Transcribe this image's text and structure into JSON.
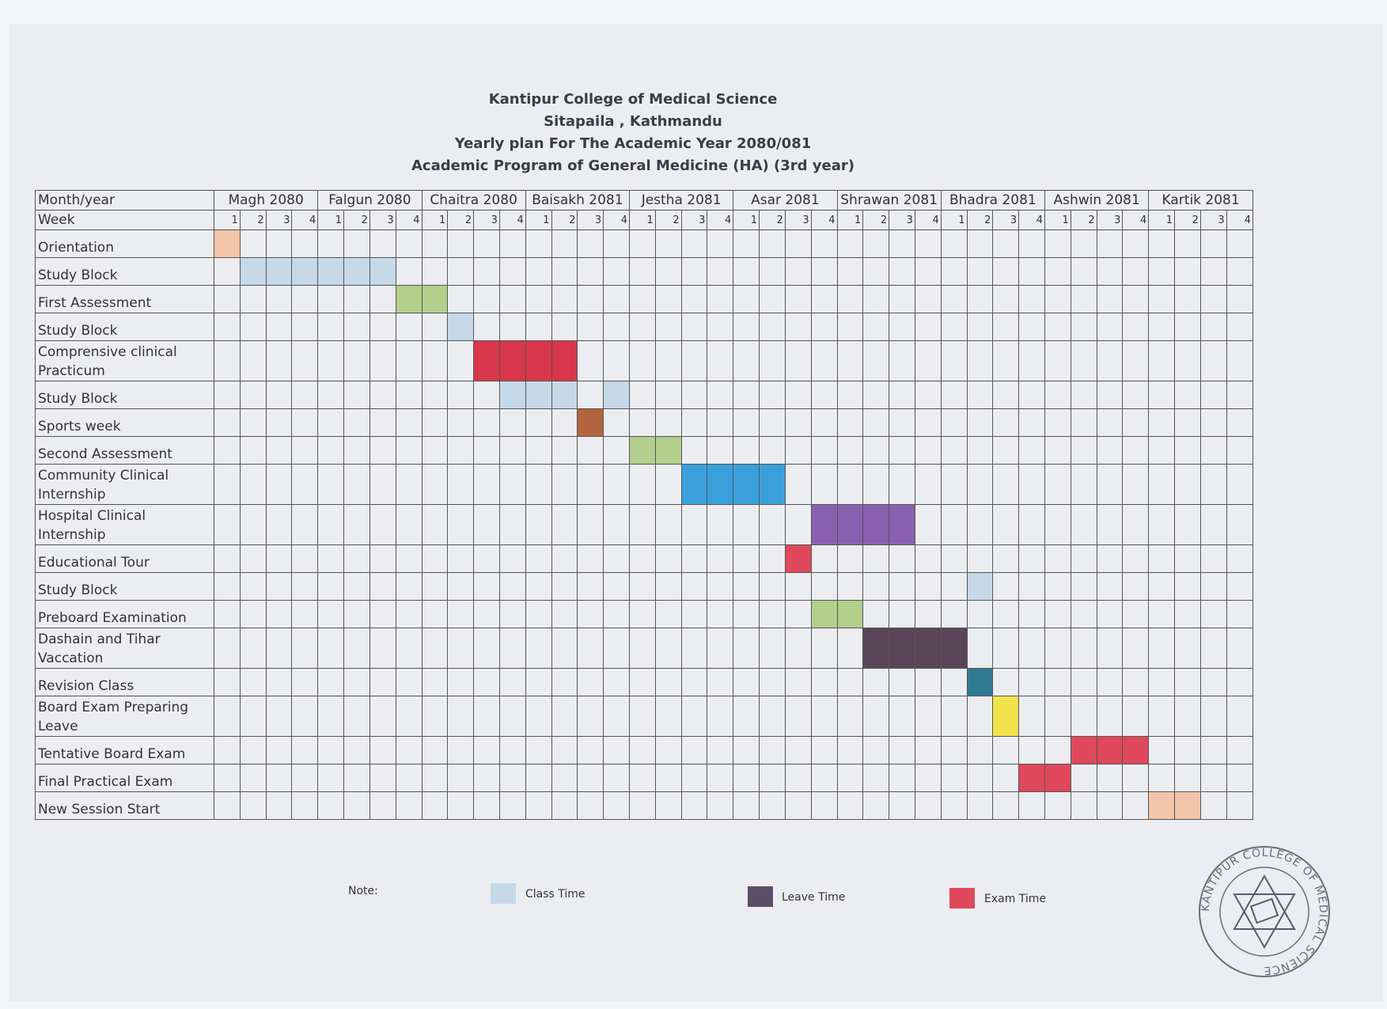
{
  "titles": {
    "college": "Kantipur College of Medical Science",
    "address": "Sitapaila , Kathmandu",
    "plan": "Yearly plan For The Academic Year 2080/081",
    "program": "Academic Program of General Medicine (HA) (3rd year)"
  },
  "header": {
    "month_year_label": "Month/year",
    "week_label": "Week",
    "months": [
      "Magh     2080",
      "Falgun 2080",
      "Chaitra 2080",
      "Baisakh 2081",
      "Jestha     2081",
      "Asar    2081",
      "Shrawan 2081",
      "Bhadra 2081",
      "Ashwin  2081",
      "Kartik 2081"
    ],
    "weeks": [
      "1",
      "2",
      "3",
      "4"
    ]
  },
  "colors": {
    "class_time": "#c6d9e8",
    "leave_time": "#5d4d67",
    "exam_time": "#e0485c",
    "orientation": "#f2c4a8",
    "assessment": "#b2cf8c",
    "practicum": "#d8364a",
    "sports": "#b4643e",
    "community": "#3aa0dc",
    "hospital": "#8a60b0",
    "vacation": "#5a4658",
    "revision": "#2f7c92",
    "prep_leave": "#f2e34c",
    "new_session": "#f2c4a8"
  },
  "activities": [
    {
      "label": "Orientation",
      "size": "r1",
      "filled": [
        0
      ],
      "color": "orientation"
    },
    {
      "label": "Study Block",
      "size": "r1",
      "filled": [
        1,
        2,
        3,
        4,
        5,
        6
      ],
      "color": "class_time"
    },
    {
      "label": "First Assessment",
      "size": "r1",
      "filled": [
        7,
        8
      ],
      "color": "assessment"
    },
    {
      "label": "Study Block",
      "size": "r1",
      "filled": [
        9
      ],
      "color": "class_time"
    },
    {
      "label": "Comprensive clinical Practicum",
      "size": "r2",
      "filled": [
        10,
        11,
        12,
        13
      ],
      "color": "practicum"
    },
    {
      "label": "Study Block",
      "size": "r1",
      "filled": [
        11,
        12,
        13,
        15
      ],
      "color": "class_time"
    },
    {
      "label": "Sports week",
      "size": "r1",
      "filled": [
        14
      ],
      "color": "sports"
    },
    {
      "label": "Second Assessment",
      "size": "r1",
      "filled": [
        16,
        17
      ],
      "color": "assessment"
    },
    {
      "label": "Community Clinical Internship",
      "size": "r2",
      "filled": [
        18,
        19,
        20,
        21
      ],
      "color": "community"
    },
    {
      "label": "Hospital Clinical Internship",
      "size": "r2",
      "filled": [
        23,
        24,
        25,
        26
      ],
      "color": "hospital"
    },
    {
      "label": "Educational Tour",
      "size": "r1",
      "filled": [
        22
      ],
      "color": "exam_time"
    },
    {
      "label": "Study Block",
      "size": "r1",
      "filled": [
        29
      ],
      "color": "class_time"
    },
    {
      "label": "Preboard Examination",
      "size": "r1",
      "filled": [
        23,
        24
      ],
      "color": "assessment"
    },
    {
      "label": "Dashain and Tihar Vaccation",
      "size": "r2",
      "filled": [
        25,
        26,
        27,
        28
      ],
      "color": "vacation"
    },
    {
      "label": "Revision Class",
      "size": "r1",
      "filled": [
        29
      ],
      "color": "revision"
    },
    {
      "label": "Board Exam Preparing Leave",
      "size": "r2",
      "filled": [
        30
      ],
      "color": "prep_leave"
    },
    {
      "label": "Tentative Board Exam",
      "size": "r1",
      "filled": [
        33,
        34,
        35
      ],
      "color": "exam_time"
    },
    {
      "label": "Final Practical Exam",
      "size": "r1",
      "filled": [
        31,
        32
      ],
      "color": "exam_time"
    },
    {
      "label": "New Session Start",
      "size": "r1",
      "filled": [
        36,
        37
      ],
      "color": "new_session"
    }
  ],
  "legend": {
    "note_label": "Note:",
    "class_time": "Class Time",
    "leave_time": "Leave Time",
    "exam_time": "Exam Time"
  },
  "stamp": {
    "text": "KANTIPUR COLLEGE OF MEDICAL SCIENCE"
  }
}
